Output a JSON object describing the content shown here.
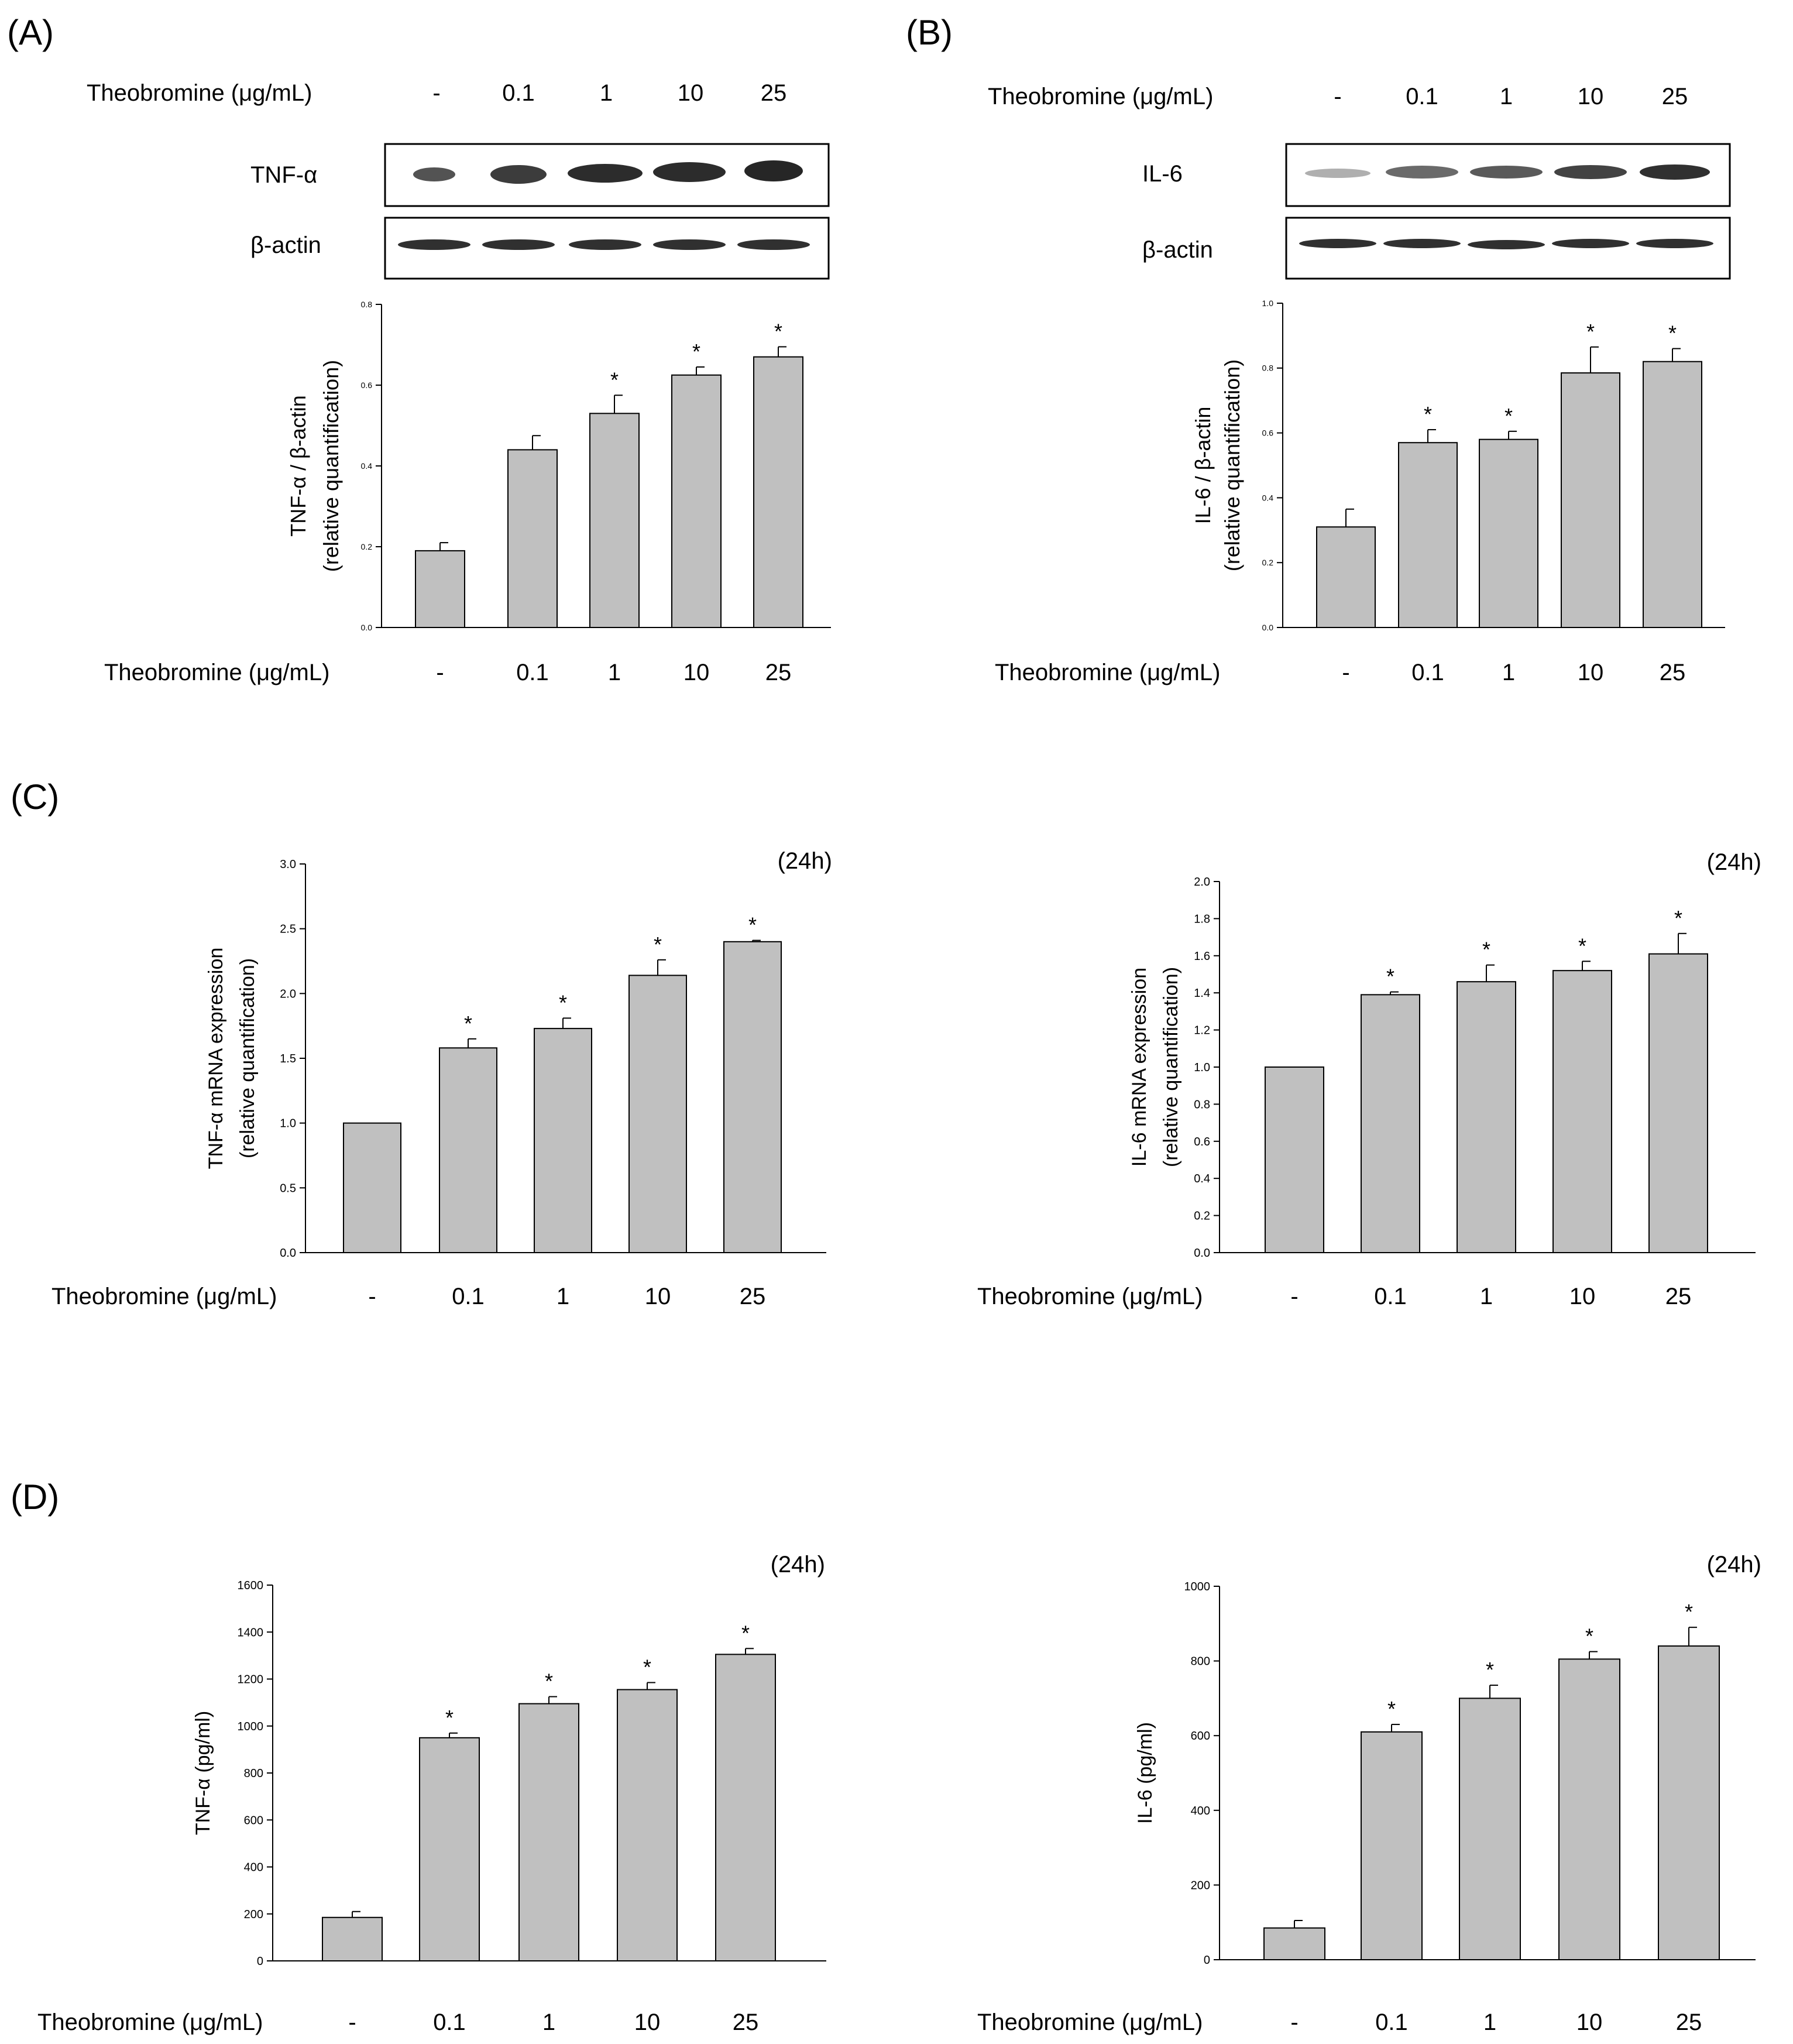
{
  "panel_labels": {
    "a": "(A)",
    "b": "(B)",
    "c": "(C)",
    "d": "(D)"
  },
  "treatment_label": "Theobromine (μg/mL)",
  "doses": [
    "-",
    "0.1",
    "1",
    "10",
    "25"
  ],
  "blots": {
    "a": {
      "protein": "TNF-α",
      "loading": "β-actin"
    },
    "b": {
      "protein": "IL-6",
      "loading": "β-actin"
    }
  },
  "colors": {
    "bar_fill": "#c0c0c0",
    "bar_stroke": "#000000",
    "band": "#1a1a1a",
    "ylabel_paren": "#c0504d"
  },
  "chart_data": [
    {
      "id": "a",
      "type": "bar",
      "categories": [
        "-",
        "0.1",
        "1",
        "10",
        "25"
      ],
      "values": [
        0.19,
        0.44,
        0.53,
        0.625,
        0.67
      ],
      "errors": [
        0.02,
        0.035,
        0.045,
        0.02,
        0.025
      ],
      "significant": [
        false,
        false,
        true,
        true,
        true
      ],
      "ylabel": "TNF-α / β-actin",
      "ylabel2": "(relative quantification)",
      "xlabel": "Theobromine (μg/mL)",
      "ylim": [
        0,
        0.8
      ],
      "yticks": [
        "0.0",
        "0.2",
        "0.4",
        "0.6",
        "0.8"
      ],
      "title": ""
    },
    {
      "id": "b",
      "type": "bar",
      "categories": [
        "-",
        "0.1",
        "1",
        "10",
        "25"
      ],
      "values": [
        0.31,
        0.57,
        0.58,
        0.785,
        0.82
      ],
      "errors": [
        0.055,
        0.04,
        0.025,
        0.08,
        0.04
      ],
      "significant": [
        false,
        true,
        true,
        true,
        true
      ],
      "ylabel": "IL-6 / β-actin",
      "ylabel2": "(relative quantification)",
      "xlabel": "Theobromine (μg/mL)",
      "ylim": [
        0,
        1.0
      ],
      "yticks": [
        "0.0",
        "0.2",
        "0.4",
        "0.6",
        "0.8",
        "1.0"
      ],
      "title": ""
    },
    {
      "id": "c1",
      "type": "bar",
      "categories": [
        "-",
        "0.1",
        "1",
        "10",
        "25"
      ],
      "values": [
        1.0,
        1.58,
        1.73,
        2.14,
        2.4
      ],
      "errors": [
        0,
        0.07,
        0.08,
        0.12,
        0.01
      ],
      "significant": [
        false,
        true,
        true,
        true,
        true
      ],
      "ylabel": "TNF-α mRNA expression",
      "ylabel2": "(relative quantification)",
      "xlabel": "Theobromine (μg/mL)",
      "ylim": [
        0,
        3.0
      ],
      "yticks": [
        "0.0",
        "0.5",
        "1.0",
        "1.5",
        "2.0",
        "2.5",
        "3.0"
      ],
      "title": "(24h)"
    },
    {
      "id": "c2",
      "type": "bar",
      "categories": [
        "-",
        "0.1",
        "1",
        "10",
        "25"
      ],
      "values": [
        1.0,
        1.39,
        1.46,
        1.52,
        1.61
      ],
      "errors": [
        0,
        0.015,
        0.09,
        0.05,
        0.11
      ],
      "significant": [
        false,
        true,
        true,
        true,
        true
      ],
      "ylabel": "IL-6 mRNA expression",
      "ylabel2": "(relative quantification)",
      "xlabel": "Theobromine (μg/mL)",
      "ylim": [
        0,
        2.0
      ],
      "yticks": [
        "0.0",
        "0.2",
        "0.4",
        "0.6",
        "0.8",
        "1.0",
        "1.2",
        "1.4",
        "1.6",
        "1.8",
        "2.0"
      ],
      "title": "(24h)"
    },
    {
      "id": "d1",
      "type": "bar",
      "categories": [
        "-",
        "0.1",
        "1",
        "10",
        "25"
      ],
      "values": [
        185,
        950,
        1095,
        1155,
        1305
      ],
      "errors": [
        25,
        20,
        30,
        30,
        25
      ],
      "significant": [
        false,
        true,
        true,
        true,
        true
      ],
      "ylabel": "TNF-α (pg/ml)",
      "ylabel2": "",
      "xlabel": "Theobromine (μg/mL)",
      "ylim": [
        0,
        1600
      ],
      "yticks": [
        "0",
        "200",
        "400",
        "600",
        "800",
        "1000",
        "1200",
        "1400",
        "1600"
      ],
      "title": "(24h)"
    },
    {
      "id": "d2",
      "type": "bar",
      "categories": [
        "-",
        "0.1",
        "1",
        "10",
        "25"
      ],
      "values": [
        85,
        610,
        700,
        805,
        840
      ],
      "errors": [
        20,
        20,
        35,
        20,
        50
      ],
      "significant": [
        false,
        true,
        true,
        true,
        true
      ],
      "ylabel": "IL-6 (pg/ml)",
      "ylabel2": "",
      "xlabel": "Theobromine (μg/mL)",
      "ylim": [
        0,
        1000
      ],
      "yticks": [
        "0",
        "200",
        "400",
        "600",
        "800",
        "1000"
      ],
      "title": "(24h)"
    }
  ]
}
